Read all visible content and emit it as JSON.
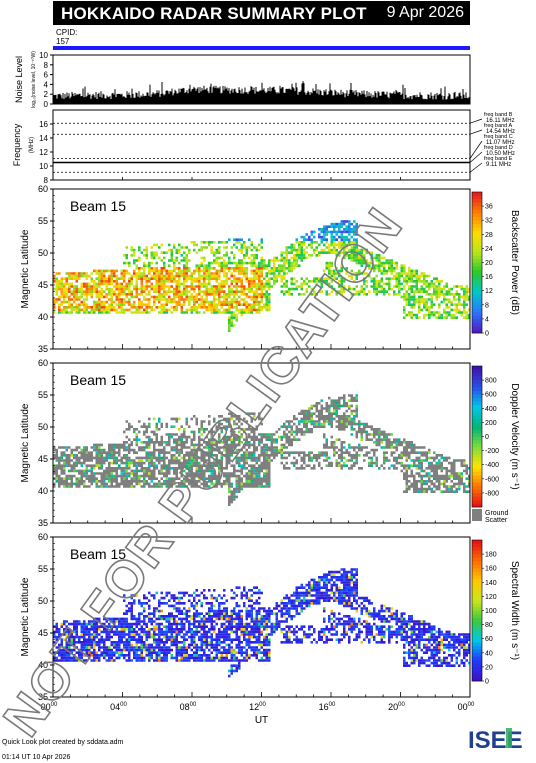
{
  "header": {
    "title": "HOKKAIDO RADAR SUMMARY PLOT",
    "date": "9 Apr 2026",
    "cpid_label": "CPID:",
    "cpid_value": "157"
  },
  "colors": {
    "title_bg": "#000000",
    "cpid_bar": "#1a1aff",
    "ground_scatter": "#7f7f7f",
    "logo_blue": "#1f3f8f",
    "logo_green": "#2fae5f"
  },
  "chart_data": [
    {
      "type": "area",
      "name": "noise-level-panel",
      "ylabel": "Noise Level",
      "ylabel_sub": "log₁₀(noise level, 10⁻¹⁰W)",
      "ylim": [
        0,
        10
      ],
      "yticks": [
        "0",
        "2",
        "4",
        "6",
        "8",
        "10"
      ],
      "x": [
        0,
        2,
        4,
        6,
        8,
        10,
        12,
        14,
        16,
        18,
        20,
        22,
        24
      ],
      "values": [
        1.6,
        1.8,
        1.8,
        2.1,
        3.0,
        2.9,
        2.8,
        2.7,
        2.3,
        2.0,
        1.8,
        1.7,
        1.6
      ]
    },
    {
      "type": "line",
      "name": "frequency-panel",
      "ylabel": "Frequency",
      "yunit": "(MHz)",
      "ylim": [
        8,
        18
      ],
      "yticks": [
        "8",
        "10",
        "12",
        "14",
        "16"
      ],
      "bands": [
        {
          "label": "freq band B",
          "mhz": 16.11,
          "text": "16.11 MHz"
        },
        {
          "label": "freq band A",
          "mhz": 14.54,
          "text": "14.54 MHz"
        },
        {
          "label": "freq band C",
          "mhz": 11.07,
          "text": "11.07 MHz"
        },
        {
          "label": "freq band D",
          "mhz": 10.5,
          "text": "10.50 MHz"
        },
        {
          "label": "freq band E",
          "mhz": 9.11,
          "text": "9.11 MHz"
        }
      ],
      "band_labels": [
        "freq band B",
        "freq band A",
        "freq band C",
        "freq band D",
        "freq band E"
      ],
      "band_texts": [
        "16.11 MHz",
        "14.54 MHz",
        "11.07 MHz",
        "10.50 MHz",
        "9.11 MHz"
      ],
      "operating_mhz": 10.5
    },
    {
      "type": "heatmap",
      "name": "backscatter-power-panel",
      "beam_label": "Beam 15",
      "ylabel": "Magnetic Latitude",
      "ylim": [
        35,
        60
      ],
      "yticks": [
        "35",
        "40",
        "45",
        "50",
        "55",
        "60"
      ],
      "colorbar_label": "Backscatter Power (dB)",
      "colorbar_range": [
        0,
        40
      ],
      "colorbar_ticks": [
        "0",
        "4",
        "8",
        "12",
        "16",
        "20",
        "24",
        "28",
        "32",
        "36"
      ],
      "ground_scatter": false
    },
    {
      "type": "heatmap",
      "name": "doppler-velocity-panel",
      "beam_label": "Beam 15",
      "ylabel": "Magnetic Latitude",
      "ylim": [
        35,
        60
      ],
      "yticks": [
        "35",
        "40",
        "45",
        "50",
        "55",
        "60"
      ],
      "colorbar_label": "Doppler Velocity (m s⁻¹)",
      "colorbar_range": [
        -1000,
        1000
      ],
      "colorbar_ticks": [
        "-800",
        "-600",
        "-400",
        "-200",
        "0",
        "200",
        "400",
        "600",
        "800"
      ],
      "ground_scatter": true,
      "ground_scatter_label": [
        "Ground",
        "Scatter"
      ]
    },
    {
      "type": "heatmap",
      "name": "spectral-width-panel",
      "beam_label": "Beam 15",
      "ylabel": "Magnetic Latitude",
      "ylim": [
        35,
        60
      ],
      "yticks": [
        "35",
        "40",
        "45",
        "50",
        "55",
        "60"
      ],
      "colorbar_label": "Spectral Width (m s⁻¹)",
      "colorbar_range": [
        0,
        200
      ],
      "colorbar_ticks": [
        "0",
        "20",
        "40",
        "60",
        "80",
        "100",
        "120",
        "140",
        "160",
        "180"
      ],
      "ground_scatter": false
    }
  ],
  "xaxis": {
    "label": "UT",
    "ticks": [
      "00",
      "04",
      "08",
      "12",
      "16",
      "20",
      "00"
    ],
    "tick_sup": "00",
    "xlim": [
      0,
      24
    ]
  },
  "footer": {
    "line1": "Quick Look plot created by sddata.adm",
    "line2": "01:14 UT 10 Apr 2026"
  },
  "logo": {
    "text": "ISEE"
  },
  "watermark": {
    "text": "NOT FOR PUBLICATION"
  }
}
